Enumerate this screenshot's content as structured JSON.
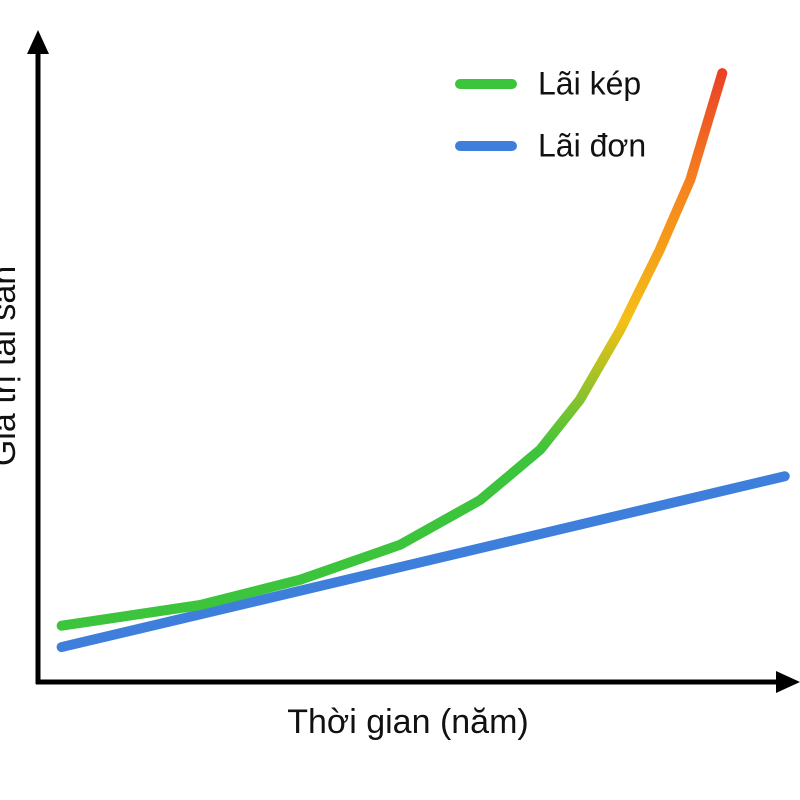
{
  "chart_data": {
    "type": "line",
    "xlabel": "Thời gian (năm)",
    "ylabel": "Giá trị tài sản",
    "xlim": [
      0,
      100
    ],
    "ylim": [
      0,
      100
    ],
    "legend": "upper right",
    "series": [
      {
        "name": "Lãi kép",
        "color": "#3cc43c",
        "x": [
          3.1,
          21.3,
          34.4,
          47.5,
          58.0,
          65.9,
          71.1,
          76.4,
          81.6,
          85.6,
          89.8
        ],
        "values": [
          8.7,
          11.9,
          15.8,
          21.2,
          28.1,
          35.9,
          43.6,
          54.4,
          66.8,
          77.6,
          94.1
        ]
      },
      {
        "name": "Lãi đơn",
        "color": "#3f7fdc",
        "x": [
          3.1,
          98.0
        ],
        "values": [
          5.4,
          31.8
        ]
      }
    ]
  }
}
